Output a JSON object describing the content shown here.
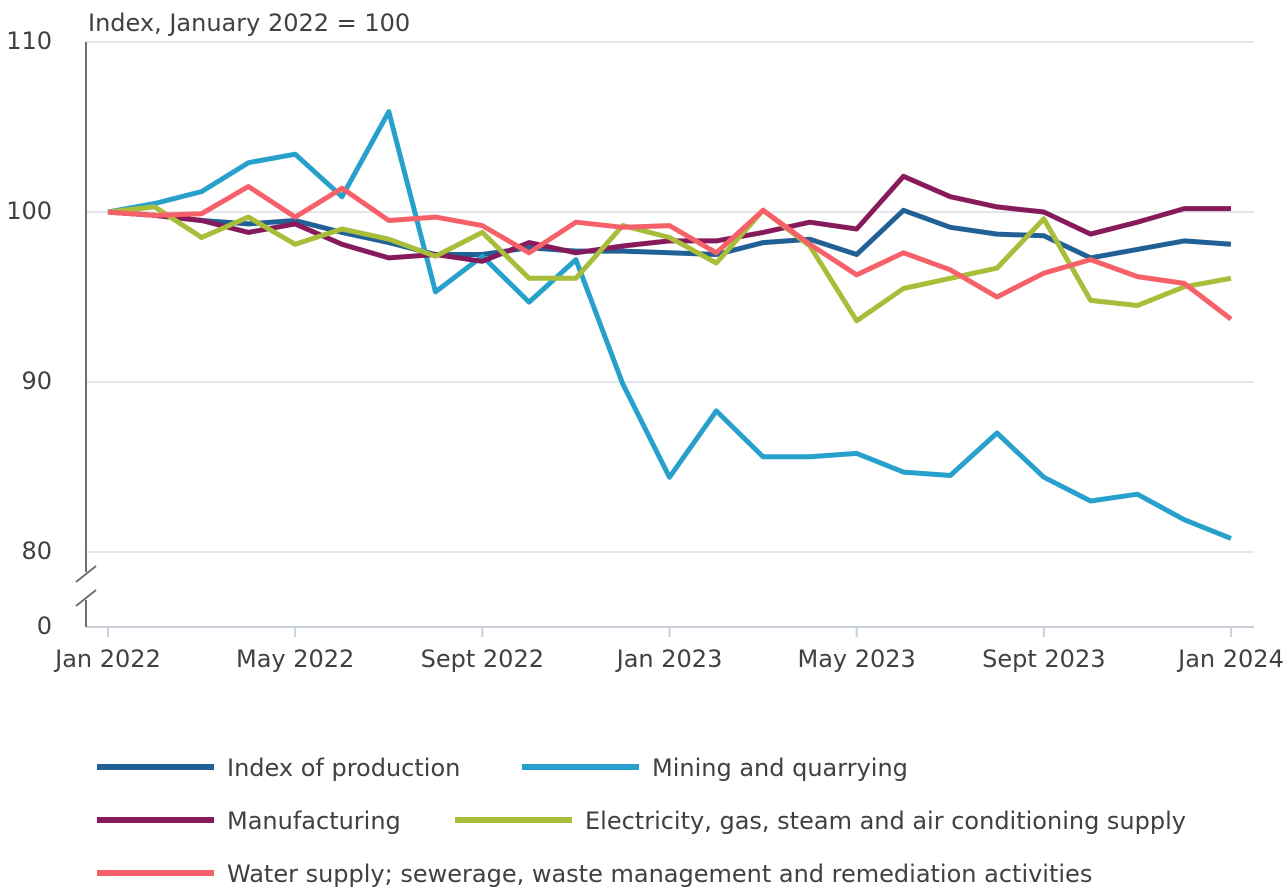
{
  "chart_data": {
    "type": "line",
    "y_label": "Index, January 2022 = 100",
    "categories": [
      "Jan 2022",
      null,
      null,
      null,
      "May 2022",
      null,
      null,
      null,
      "Sept 2022",
      null,
      null,
      null,
      "Jan 2023",
      null,
      null,
      null,
      "May 2023",
      null,
      null,
      null,
      "Sept 2023",
      null,
      null,
      null,
      "Jan 2024"
    ],
    "ylim": [
      0,
      110
    ],
    "axis_break": [
      0,
      80
    ],
    "yticks": [
      0,
      80,
      90,
      100,
      110
    ],
    "grid": true,
    "series": [
      {
        "name": "Index of production",
        "color": "#206095",
        "values": [
          100,
          99.8,
          99.5,
          99.3,
          99.5,
          98.8,
          98.2,
          97.5,
          97.5,
          97.9,
          97.7,
          97.7,
          97.6,
          97.5,
          98.2,
          98.4,
          97.5,
          100.1,
          99.1,
          98.7,
          98.6,
          97.3,
          97.8,
          98.3,
          98.1
        ]
      },
      {
        "name": "Mining and quarrying",
        "color": "#27a0cc",
        "values": [
          100,
          100.5,
          101.2,
          102.9,
          103.4,
          100.9,
          105.9,
          95.3,
          97.4,
          94.7,
          97.2,
          89.9,
          84.4,
          88.3,
          85.6,
          85.6,
          85.8,
          84.7,
          84.5,
          87.0,
          84.4,
          83.0,
          83.4,
          81.9,
          80.8
        ]
      },
      {
        "name": "Manufacturing",
        "color": "#871a5b",
        "values": [
          100,
          99.8,
          99.5,
          98.8,
          99.3,
          98.1,
          97.3,
          97.5,
          97.1,
          98.2,
          97.6,
          98.0,
          98.3,
          98.3,
          98.8,
          99.4,
          99.0,
          102.1,
          100.9,
          100.3,
          100.0,
          98.7,
          99.4,
          100.2,
          100.2
        ]
      },
      {
        "name": "Electricity, gas, steam and air conditioning supply",
        "color": "#a8bd3a",
        "values": [
          100,
          100.3,
          98.5,
          99.7,
          98.1,
          99.0,
          98.4,
          97.4,
          98.8,
          96.1,
          96.1,
          99.2,
          98.5,
          97.0,
          100.1,
          98.0,
          93.6,
          95.5,
          96.1,
          96.7,
          99.6,
          94.8,
          94.5,
          95.6,
          96.1
        ]
      },
      {
        "name": "Water supply; sewerage, waste management and remediation activities",
        "color": "#f66068",
        "values": [
          100,
          99.8,
          99.9,
          101.5,
          99.7,
          101.4,
          99.5,
          99.7,
          99.2,
          97.6,
          99.4,
          99.1,
          99.2,
          97.6,
          100.1,
          98.1,
          96.3,
          97.6,
          96.6,
          95.0,
          96.4,
          97.2,
          96.2,
          95.8,
          93.7
        ]
      }
    ]
  }
}
